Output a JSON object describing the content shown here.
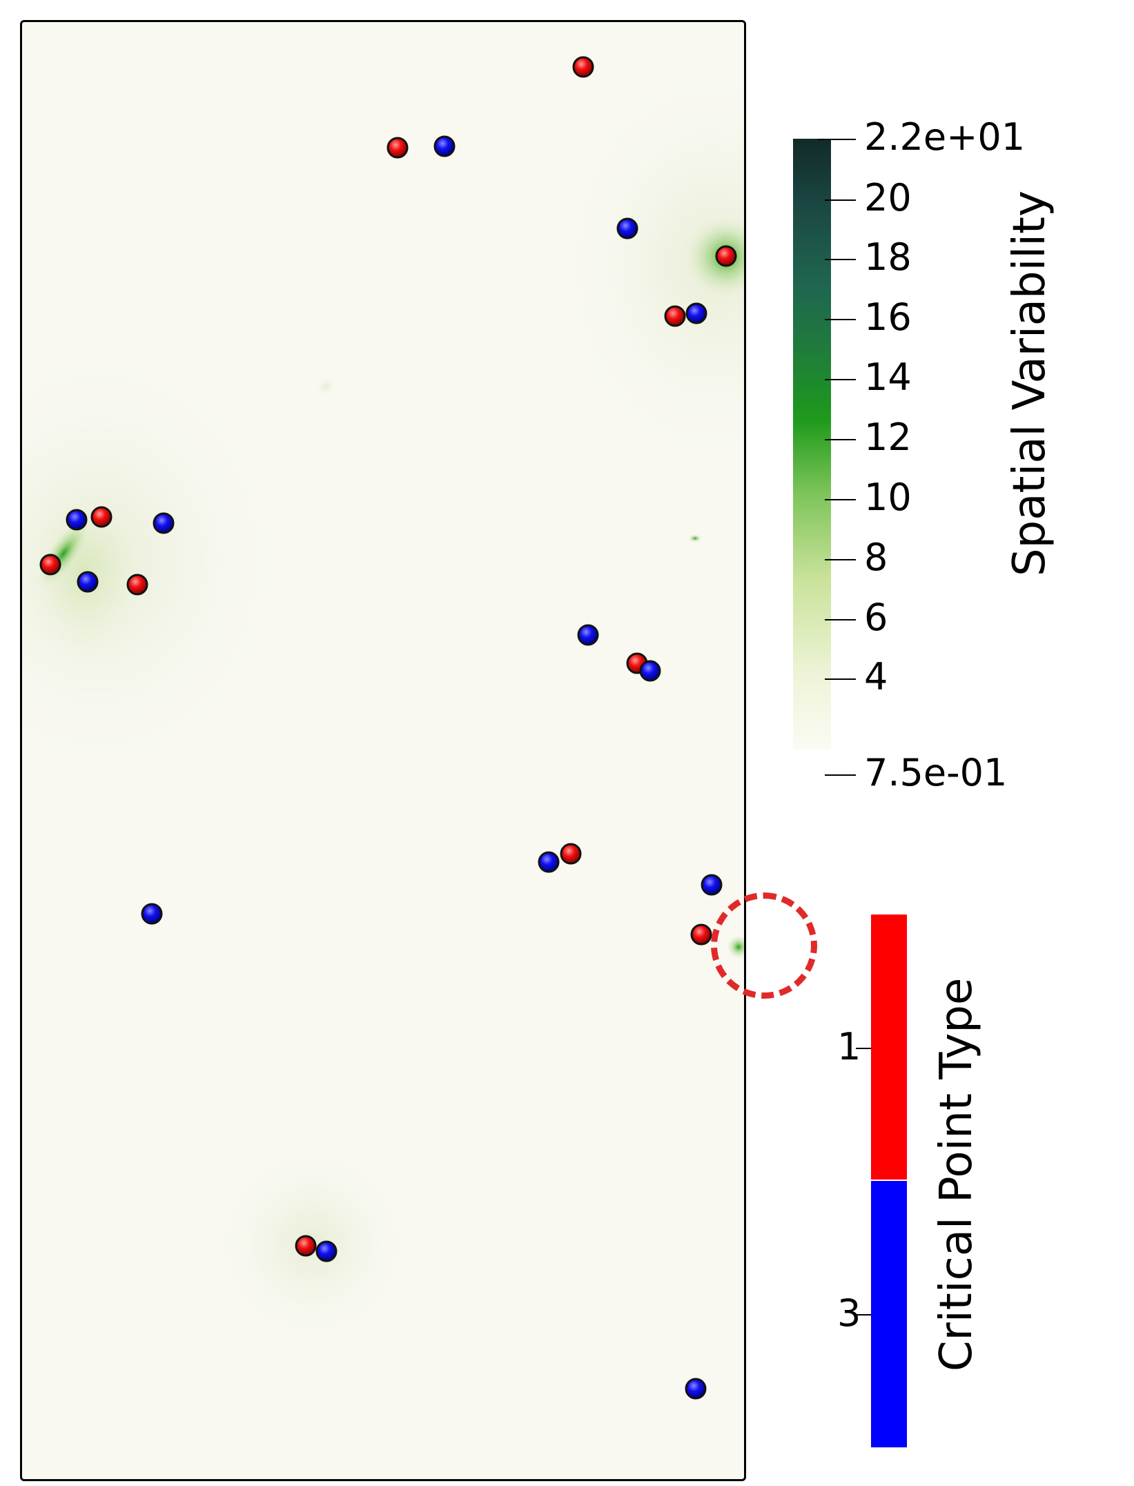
{
  "spatial_variability_legend": {
    "title": "Spatial Variability",
    "max_label": "2.2e+01",
    "min_label": "7.5e-01",
    "min": 0.75,
    "max": 22,
    "ticks": [
      "20",
      "18",
      "16",
      "14",
      "12",
      "10",
      "8",
      "6",
      "4"
    ],
    "tick_values": [
      20,
      18,
      16,
      14,
      12,
      10,
      8,
      6,
      4
    ],
    "colors": [
      "#fbfbf4",
      "#c9e29a",
      "#1e9a1c",
      "#1f6650",
      "#122a2a"
    ]
  },
  "critical_point_legend": {
    "title": "Critical Point Type",
    "entries": [
      {
        "label": "1",
        "color": "#ff0000"
      },
      {
        "label": "3",
        "color": "#0000ff"
      }
    ]
  },
  "highlight": {
    "style": "dashed-circle",
    "color": "#e02a2a"
  }
}
